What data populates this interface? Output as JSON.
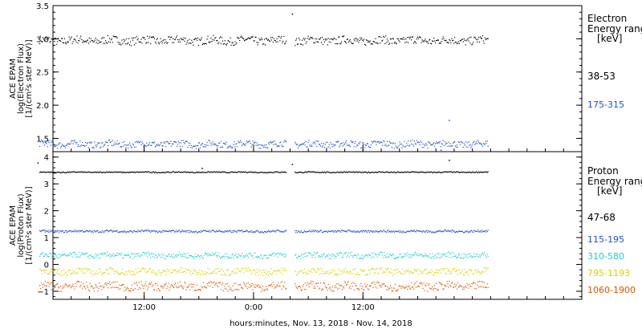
{
  "chart_data": [
    {
      "type": "scatter",
      "title": "",
      "ylabel_lines": [
        "ACE EPAM",
        "log(Electron Flux)",
        "[1/(cm²s ster MeV)]"
      ],
      "ylim": [
        1.3,
        3.5
      ],
      "yticks": [
        "1.5",
        "2.0",
        "2.5",
        "3.0",
        "3.5"
      ],
      "ytick_values": [
        1.5,
        2.0,
        2.5,
        3.0,
        3.5
      ],
      "legend_title_lines": [
        "Electron",
        "Energy ranges",
        "[keV]"
      ],
      "series": [
        {
          "name": "38-53",
          "color": "#000000",
          "base": 2.98,
          "spread": 0.06,
          "outliers": [
            [
              28.2,
              3.38
            ]
          ]
        },
        {
          "name": "175-315",
          "color": "#1f4fd8",
          "base": 1.42,
          "spread": 0.05,
          "outliers": [
            [
              45.4,
              1.78
            ],
            [
              44.5,
              1.33
            ]
          ]
        }
      ]
    },
    {
      "type": "scatter",
      "title": "",
      "ylabel_lines": [
        "ACE EPAM",
        "log(Proton Flux)",
        "[1/(cm²s ster MeV)]"
      ],
      "ylim": [
        -1.3,
        4.2
      ],
      "yticks": [
        "−1",
        "0",
        "1",
        "2",
        "3",
        "4"
      ],
      "ytick_values": [
        -1,
        0,
        1,
        2,
        3,
        4
      ],
      "legend_title_lines": [
        "Proton",
        "Energy ranges",
        "[keV]"
      ],
      "series": [
        {
          "name": "47-68",
          "color": "#000000",
          "base": 3.45,
          "spread": 0.02,
          "outliers": [
            [
              18.3,
              3.6
            ],
            [
              28.2,
              3.75
            ],
            [
              0.3,
              3.8
            ],
            [
              45.4,
              3.9
            ]
          ]
        },
        {
          "name": "115-195",
          "color": "#1f4fd8",
          "base": 1.25,
          "spread": 0.04,
          "outliers": []
        },
        {
          "name": "310-580",
          "color": "#22cccc",
          "base": 0.35,
          "spread": 0.1,
          "outliers": []
        },
        {
          "name": "795-1193",
          "color": "#d4d400",
          "base": -0.25,
          "spread": 0.12,
          "outliers": []
        },
        {
          "name": "1060-1900",
          "color": "#dd5500",
          "base": -0.8,
          "spread": 0.15,
          "outliers": []
        }
      ]
    }
  ],
  "x_axis": {
    "label": "hours:minutes, Nov. 13, 2018 - Nov. 14, 2018",
    "range_hours": [
      2,
      60
    ],
    "ticks": [
      {
        "label": "12:00",
        "hour": 12
      },
      {
        "label": "0:00",
        "hour": 24
      },
      {
        "label": "12:00",
        "hour": 36
      }
    ],
    "minor_every_hours": 2,
    "data_segments": [
      [
        0.5,
        27.6
      ],
      [
        28.5,
        49.7
      ]
    ]
  }
}
